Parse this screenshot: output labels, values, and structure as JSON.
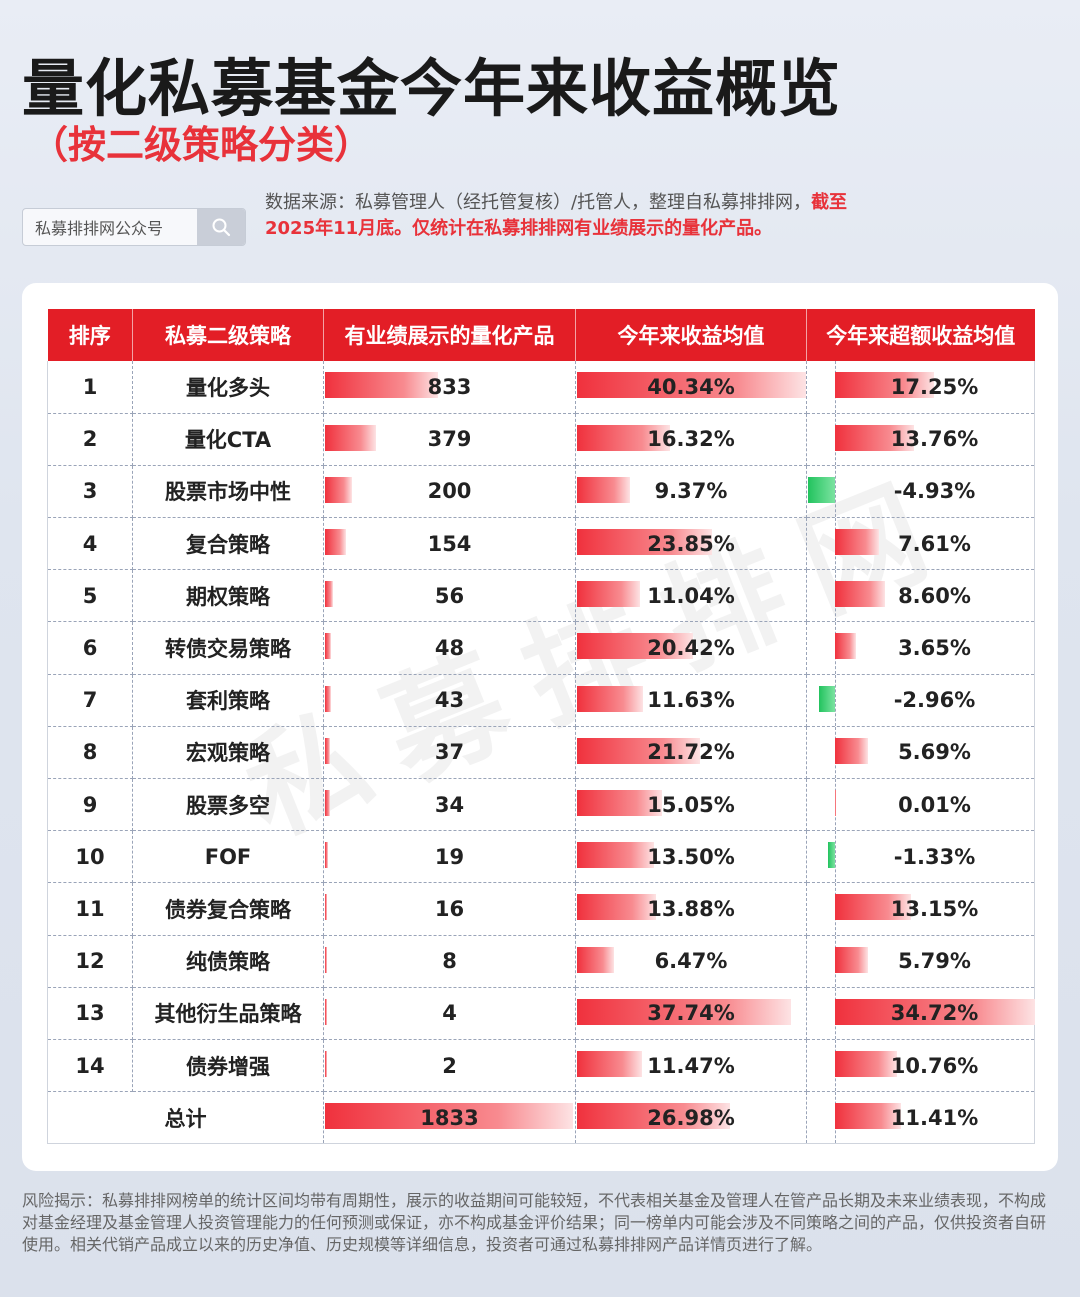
{
  "header": {
    "title": "量化私募基金今年来收益概览",
    "subtitle": "（按二级策略分类）"
  },
  "search": {
    "label": "私募排排网公众号",
    "icon": "search-icon"
  },
  "source": {
    "normal": "数据来源：私募管理人（经托管复核）/托管人，整理自私募排排网，",
    "highlight": "截至2025年11月底。仅统计在私募排排网有业绩展示的量化产品。"
  },
  "watermark": "私募排排网",
  "table": {
    "headers": [
      "排序",
      "私募二级策略",
      "有业绩展示的量化产品",
      "今年来收益均值",
      "今年来超额收益均值"
    ],
    "rows": [
      {
        "rank": "1",
        "strategy": "量化多头",
        "count": 833,
        "count_label": "833",
        "ret": 40.34,
        "ret_label": "40.34%",
        "excess": 17.25,
        "excess_label": "17.25%"
      },
      {
        "rank": "2",
        "strategy": "量化CTA",
        "count": 379,
        "count_label": "379",
        "ret": 16.32,
        "ret_label": "16.32%",
        "excess": 13.76,
        "excess_label": "13.76%"
      },
      {
        "rank": "3",
        "strategy": "股票市场中性",
        "count": 200,
        "count_label": "200",
        "ret": 9.37,
        "ret_label": "9.37%",
        "excess": -4.93,
        "excess_label": "-4.93%"
      },
      {
        "rank": "4",
        "strategy": "复合策略",
        "count": 154,
        "count_label": "154",
        "ret": 23.85,
        "ret_label": "23.85%",
        "excess": 7.61,
        "excess_label": "7.61%"
      },
      {
        "rank": "5",
        "strategy": "期权策略",
        "count": 56,
        "count_label": "56",
        "ret": 11.04,
        "ret_label": "11.04%",
        "excess": 8.6,
        "excess_label": "8.60%"
      },
      {
        "rank": "6",
        "strategy": "转债交易策略",
        "count": 48,
        "count_label": "48",
        "ret": 20.42,
        "ret_label": "20.42%",
        "excess": 3.65,
        "excess_label": "3.65%"
      },
      {
        "rank": "7",
        "strategy": "套利策略",
        "count": 43,
        "count_label": "43",
        "ret": 11.63,
        "ret_label": "11.63%",
        "excess": -2.96,
        "excess_label": "-2.96%"
      },
      {
        "rank": "8",
        "strategy": "宏观策略",
        "count": 37,
        "count_label": "37",
        "ret": 21.72,
        "ret_label": "21.72%",
        "excess": 5.69,
        "excess_label": "5.69%"
      },
      {
        "rank": "9",
        "strategy": "股票多空",
        "count": 34,
        "count_label": "34",
        "ret": 15.05,
        "ret_label": "15.05%",
        "excess": 0.01,
        "excess_label": "0.01%"
      },
      {
        "rank": "10",
        "strategy": "FOF",
        "count": 19,
        "count_label": "19",
        "ret": 13.5,
        "ret_label": "13.50%",
        "excess": -1.33,
        "excess_label": "-1.33%"
      },
      {
        "rank": "11",
        "strategy": "债券复合策略",
        "count": 16,
        "count_label": "16",
        "ret": 13.88,
        "ret_label": "13.88%",
        "excess": 13.15,
        "excess_label": "13.15%"
      },
      {
        "rank": "12",
        "strategy": "纯债策略",
        "count": 8,
        "count_label": "8",
        "ret": 6.47,
        "ret_label": "6.47%",
        "excess": 5.79,
        "excess_label": "5.79%"
      },
      {
        "rank": "13",
        "strategy": "其他衍生品策略",
        "count": 4,
        "count_label": "4",
        "ret": 37.74,
        "ret_label": "37.74%",
        "excess": 34.72,
        "excess_label": "34.72%"
      },
      {
        "rank": "14",
        "strategy": "债券增强",
        "count": 2,
        "count_label": "2",
        "ret": 11.47,
        "ret_label": "11.47%",
        "excess": 10.76,
        "excess_label": "10.76%"
      }
    ],
    "total": {
      "label": "总计",
      "count": 1833,
      "count_label": "1833",
      "ret": 26.98,
      "ret_label": "26.98%",
      "excess": 11.41,
      "excess_label": "11.41%"
    }
  },
  "colors": {
    "accent": "#e31e26",
    "positive_bar": "#f0313d",
    "negative_bar": "#22c35e",
    "highlight_text": "#e8323a"
  },
  "risk": "风险揭示：私募排排网榜单的统计区间均带有周期性，展示的收益期间可能较短，不代表相关基金及管理人在管产品长期及未来业绩表现，不构成对基金经理及基金管理人投资管理能力的任何预测或保证，亦不构成基金评价结果；同一榜单内可能会涉及不同策略之间的产品，仅供投资者自研使用。相关代销产品成立以来的历史净值、历史规模等详细信息，投资者可通过私募排排网产品详情页进行了解。"
}
